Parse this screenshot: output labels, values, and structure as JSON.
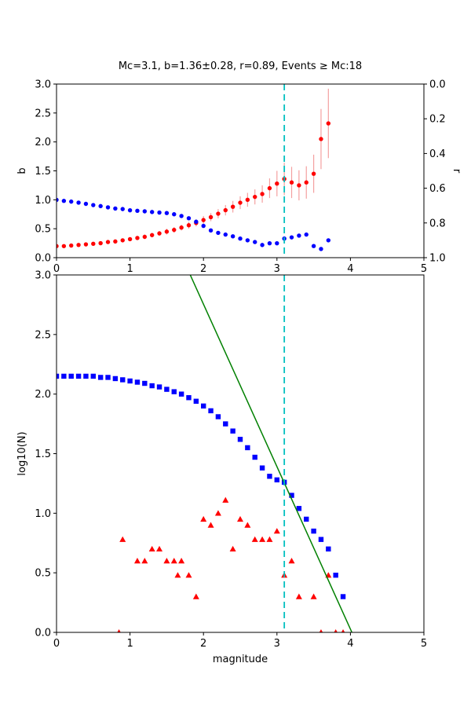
{
  "figure": {
    "title": "Mc=3.1, b=1.36±0.28, r=0.89, Events ≥ Mc:18",
    "background": "#ffffff",
    "colors": {
      "red": "#ff0000",
      "pink": "#f4a0a0",
      "blue": "#0000ff",
      "green": "#008000",
      "cyan": "#00bfbf",
      "axis": "#000000"
    }
  },
  "chart_data": [
    {
      "id": "b-r-vs-cutoff-magnitude",
      "type": "scatter",
      "title": "",
      "xlim": [
        0,
        5
      ],
      "xticks": [
        0,
        1,
        2,
        3,
        4,
        5
      ],
      "xtick_labels": [
        "0",
        "1",
        "2",
        "3",
        "4",
        "5"
      ],
      "ylabel_left": "b",
      "ylim_left": [
        0,
        3
      ],
      "yticks_left": [
        0,
        0.5,
        1,
        1.5,
        2,
        2.5,
        3
      ],
      "ytick_labels_left": [
        "0.0",
        "0.5",
        "1.0",
        "1.5",
        "2.0",
        "2.5",
        "3.0"
      ],
      "ylabel_right": "r",
      "ylim_right": [
        0,
        1
      ],
      "right_axis_inverted": true,
      "yticks_right": [
        0,
        0.2,
        0.4,
        0.6,
        0.8,
        1
      ],
      "ytick_labels_right": [
        "0.0",
        "0.2",
        "0.4",
        "0.6",
        "0.8",
        "1.0"
      ],
      "grid": false,
      "series": [
        {
          "name": "b-value-vs-mc",
          "kind": "scatter",
          "marker": "circle",
          "color": "red",
          "err_color": "pink",
          "axis": "left",
          "x": [
            0.0,
            0.1,
            0.2,
            0.3,
            0.4,
            0.5,
            0.6,
            0.7,
            0.8,
            0.9,
            1.0,
            1.1,
            1.2,
            1.3,
            1.4,
            1.5,
            1.6,
            1.7,
            1.8,
            1.9,
            2.0,
            2.1,
            2.2,
            2.3,
            2.4,
            2.5,
            2.6,
            2.7,
            2.8,
            2.9,
            3.0,
            3.1,
            3.2,
            3.3,
            3.4,
            3.5,
            3.6,
            3.7
          ],
          "y": [
            0.2,
            0.2,
            0.21,
            0.22,
            0.23,
            0.24,
            0.25,
            0.27,
            0.28,
            0.3,
            0.32,
            0.34,
            0.36,
            0.39,
            0.42,
            0.45,
            0.48,
            0.52,
            0.56,
            0.6,
            0.65,
            0.7,
            0.76,
            0.82,
            0.88,
            0.95,
            1.0,
            1.05,
            1.1,
            1.2,
            1.28,
            1.36,
            1.3,
            1.25,
            1.3,
            1.45,
            2.05,
            2.32
          ],
          "yerr": [
            0.01,
            0.01,
            0.01,
            0.01,
            0.02,
            0.02,
            0.02,
            0.02,
            0.03,
            0.03,
            0.03,
            0.03,
            0.04,
            0.04,
            0.04,
            0.05,
            0.05,
            0.05,
            0.06,
            0.06,
            0.07,
            0.07,
            0.08,
            0.09,
            0.1,
            0.11,
            0.12,
            0.13,
            0.15,
            0.17,
            0.22,
            0.28,
            0.27,
            0.26,
            0.28,
            0.33,
            0.52,
            0.6
          ]
        },
        {
          "name": "r-value-vs-mc",
          "kind": "scatter",
          "marker": "circle",
          "color": "blue",
          "axis": "right",
          "x": [
            0.0,
            0.1,
            0.2,
            0.3,
            0.4,
            0.5,
            0.6,
            0.7,
            0.8,
            0.9,
            1.0,
            1.1,
            1.2,
            1.3,
            1.4,
            1.5,
            1.6,
            1.7,
            1.8,
            1.9,
            2.0,
            2.1,
            2.2,
            2.3,
            2.4,
            2.5,
            2.6,
            2.7,
            2.8,
            2.9,
            3.0,
            3.1,
            3.2,
            3.3,
            3.4,
            3.5,
            3.6,
            3.7
          ],
          "y": [
            0.667,
            0.673,
            0.677,
            0.683,
            0.69,
            0.697,
            0.703,
            0.71,
            0.717,
            0.72,
            0.727,
            0.73,
            0.733,
            0.737,
            0.74,
            0.743,
            0.75,
            0.76,
            0.773,
            0.793,
            0.817,
            0.843,
            0.857,
            0.867,
            0.877,
            0.89,
            0.9,
            0.91,
            0.927,
            0.917,
            0.917,
            0.89,
            0.883,
            0.873,
            0.867,
            0.933,
            0.95,
            0.9
          ]
        },
        {
          "name": "mc-cutoff-line",
          "kind": "vline",
          "color": "cyan",
          "x": 3.1,
          "dash": [
            8,
            5
          ]
        }
      ]
    },
    {
      "id": "frequency-magnitude-distribution",
      "type": "scatter",
      "title": "",
      "xlabel": "magnitude",
      "xlim": [
        0,
        5
      ],
      "xticks": [
        0,
        1,
        2,
        3,
        4,
        5
      ],
      "xtick_labels": [
        "0",
        "1",
        "2",
        "3",
        "4",
        "5"
      ],
      "ylabel_left": "log10(N)",
      "ylim_left": [
        0,
        3
      ],
      "yticks_left": [
        0,
        0.5,
        1,
        1.5,
        2,
        2.5,
        3
      ],
      "ytick_labels_left": [
        "0.0",
        "0.5",
        "1.0",
        "1.5",
        "2.0",
        "2.5",
        "3.0"
      ],
      "grid": false,
      "series": [
        {
          "name": "cumulative-counts",
          "kind": "scatter",
          "marker": "square",
          "color": "blue",
          "axis": "left",
          "x": [
            0.0,
            0.1,
            0.2,
            0.3,
            0.4,
            0.5,
            0.6,
            0.7,
            0.8,
            0.9,
            1.0,
            1.1,
            1.2,
            1.3,
            1.4,
            1.5,
            1.6,
            1.7,
            1.8,
            1.9,
            2.0,
            2.1,
            2.2,
            2.3,
            2.4,
            2.5,
            2.6,
            2.7,
            2.8,
            2.9,
            3.0,
            3.1,
            3.2,
            3.3,
            3.4,
            3.5,
            3.6,
            3.7,
            3.8,
            3.9
          ],
          "y": [
            2.15,
            2.15,
            2.15,
            2.15,
            2.15,
            2.15,
            2.14,
            2.14,
            2.13,
            2.12,
            2.11,
            2.1,
            2.09,
            2.07,
            2.06,
            2.04,
            2.02,
            2.0,
            1.97,
            1.94,
            1.9,
            1.86,
            1.81,
            1.75,
            1.69,
            1.62,
            1.55,
            1.47,
            1.38,
            1.31,
            1.28,
            1.26,
            1.15,
            1.04,
            0.95,
            0.85,
            0.78,
            0.7,
            0.48,
            0.3
          ]
        },
        {
          "name": "binned-counts",
          "kind": "scatter",
          "marker": "triangle",
          "color": "red",
          "axis": "left",
          "x": [
            0.85,
            0.9,
            1.1,
            1.2,
            1.3,
            1.4,
            1.5,
            1.6,
            1.65,
            1.7,
            1.8,
            1.9,
            2.0,
            2.1,
            2.2,
            2.3,
            2.4,
            2.5,
            2.6,
            2.7,
            2.8,
            2.9,
            3.0,
            3.1,
            3.2,
            3.3,
            3.5,
            3.6,
            3.7,
            3.8,
            3.9
          ],
          "y": [
            0.0,
            0.78,
            0.6,
            0.6,
            0.7,
            0.7,
            0.6,
            0.6,
            0.48,
            0.6,
            0.48,
            0.3,
            0.95,
            0.9,
            1.0,
            1.11,
            0.7,
            0.95,
            0.9,
            0.78,
            0.78,
            0.78,
            0.85,
            0.48,
            0.6,
            0.3,
            0.3,
            0.0,
            0.48,
            0.0,
            0.0
          ]
        },
        {
          "name": "gutenberg-richter-fit-line",
          "kind": "line",
          "color": "green",
          "x": [
            1.82,
            4.02
          ],
          "y": [
            3.0,
            0.0
          ]
        },
        {
          "name": "mc-cutoff-line",
          "kind": "vline",
          "color": "cyan",
          "x": 3.1,
          "dash": [
            8,
            5
          ]
        }
      ]
    }
  ]
}
